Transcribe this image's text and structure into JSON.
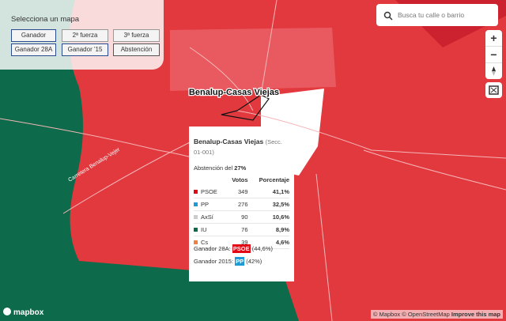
{
  "selector": {
    "title": "Selecciona un mapa",
    "buttons": [
      "Ganador",
      "2ª fuerza",
      "3ª fuerza",
      "Ganador 28A",
      "Ganador '15",
      "Abstención"
    ]
  },
  "search": {
    "placeholder": "Busca tu calle o barrio"
  },
  "controls": {
    "zoom_in": "+",
    "zoom_out": "−"
  },
  "map_labels": {
    "town": "Benalup-Casas Viejas",
    "road": "Carretera Benalup-Vejer"
  },
  "popup": {
    "title": "Benalup-Casas Viejas",
    "section": "(Secc. 01-001)",
    "abstention_label": "Abstención del",
    "abstention_value": "27%",
    "headers": [
      "Votos",
      "Porcentaje"
    ],
    "rows": [
      {
        "party": "PSOE",
        "color": "#e30613",
        "votes": 349,
        "percent": "41,1%"
      },
      {
        "party": "PP",
        "color": "#1d9bd7",
        "votes": 276,
        "percent": "32,5%"
      },
      {
        "party": "AxSí",
        "color": "#cccccc",
        "votes": 90,
        "percent": "10,6%"
      },
      {
        "party": "IU",
        "color": "#0a6b48",
        "votes": 76,
        "percent": "8,9%"
      },
      {
        "party": "Cs",
        "color": "#f08040",
        "votes": 39,
        "percent": "4,6%"
      }
    ],
    "winners": [
      {
        "label": "Ganador 28A:",
        "party": "PSOE",
        "color": "#e30613",
        "percent": "(44,6%)"
      },
      {
        "label": "Ganador 2015:",
        "party": "PP",
        "color": "#1d9bd7",
        "percent": "(42%)"
      }
    ]
  },
  "attribution": {
    "logo": "mapbox",
    "links": [
      "© Mapbox",
      "© OpenStreetMap",
      "Improve this map"
    ]
  }
}
